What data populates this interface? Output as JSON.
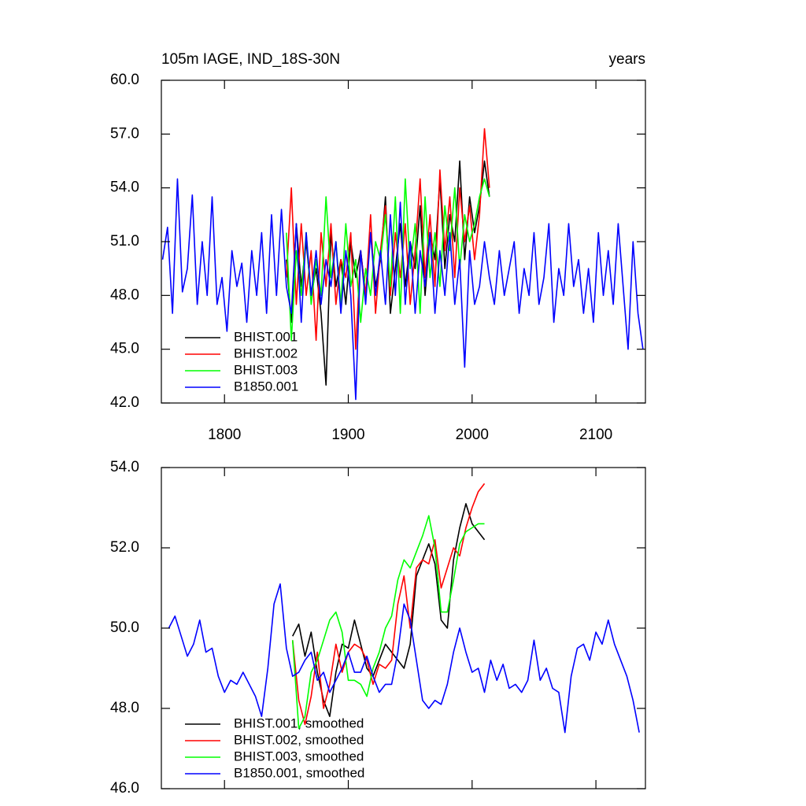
{
  "chart_data": [
    {
      "type": "line",
      "title": "105m IAGE, IND_18S-30N",
      "right_title": "years",
      "x": [
        1750,
        1754,
        1758,
        1762,
        1766,
        1770,
        1774,
        1778,
        1782,
        1786,
        1790,
        1794,
        1798,
        1802,
        1806,
        1810,
        1814,
        1818,
        1822,
        1826,
        1830,
        1834,
        1838,
        1842,
        1846,
        1850,
        1854,
        1858,
        1862,
        1866,
        1870,
        1874,
        1878,
        1882,
        1886,
        1890,
        1894,
        1898,
        1902,
        1906,
        1910,
        1914,
        1918,
        1922,
        1926,
        1930,
        1934,
        1938,
        1942,
        1946,
        1950,
        1954,
        1958,
        1962,
        1966,
        1970,
        1974,
        1978,
        1982,
        1986,
        1990,
        1994,
        1998,
        2002,
        2006,
        2010,
        2014,
        2018,
        2022,
        2026,
        2030,
        2034,
        2038,
        2042,
        2046,
        2050,
        2054,
        2058,
        2062,
        2066,
        2070,
        2074,
        2078,
        2082,
        2086,
        2090,
        2094,
        2098,
        2102,
        2106,
        2110,
        2114,
        2118,
        2122,
        2126,
        2130,
        2134,
        2138
      ],
      "xlim": [
        1749,
        2140
      ],
      "xticks": [
        1800,
        1900,
        2000,
        2100
      ],
      "ylim": [
        42,
        60
      ],
      "yticks": [
        {
          "value": 42,
          "label": "42.0"
        },
        {
          "value": 45,
          "label": "45.0"
        },
        {
          "value": 48,
          "label": "48.0"
        },
        {
          "value": 51,
          "label": "51.0"
        },
        {
          "value": 54,
          "label": "54.0"
        },
        {
          "value": 57,
          "label": "57.0"
        },
        {
          "value": 60,
          "label": "60.0"
        }
      ],
      "series": [
        {
          "name": "BHIST.001",
          "color": "#000000",
          "values": [
            null,
            null,
            null,
            null,
            null,
            null,
            null,
            null,
            null,
            null,
            null,
            null,
            null,
            null,
            null,
            null,
            null,
            null,
            null,
            null,
            null,
            null,
            null,
            null,
            null,
            50,
            46.5,
            52,
            48.5,
            51,
            48,
            49.5,
            47,
            43,
            51.5,
            48.5,
            50,
            47.5,
            51,
            49,
            50.5,
            48,
            51.5,
            48.5,
            50,
            53.5,
            47,
            49.5,
            52,
            48.5,
            51,
            49.5,
            53,
            48,
            51.5,
            50,
            54.5,
            49.5,
            52.5,
            51,
            55.5,
            50,
            53.5,
            51.5,
            53,
            55.5,
            53.5,
            null,
            null,
            null,
            null,
            null,
            null,
            null,
            null,
            null,
            null,
            null,
            null,
            null,
            null,
            null,
            null,
            null,
            null,
            null,
            null,
            null,
            null,
            null,
            null,
            null,
            null,
            null,
            null,
            null,
            null,
            null
          ]
        },
        {
          "name": "BHIST.002",
          "color": "#ff0000",
          "values": [
            null,
            null,
            null,
            null,
            null,
            null,
            null,
            null,
            null,
            null,
            null,
            null,
            null,
            null,
            null,
            null,
            null,
            null,
            null,
            null,
            null,
            null,
            null,
            null,
            null,
            49,
            54,
            47.5,
            52,
            48,
            50.5,
            45.5,
            51.5,
            48.5,
            52,
            47.5,
            50,
            49,
            51.5,
            45,
            50.5,
            48,
            52.5,
            47,
            50.5,
            53,
            48,
            51.5,
            49,
            52,
            47.5,
            50.5,
            54.5,
            49,
            52.5,
            48.5,
            55,
            50.5,
            53.5,
            49,
            54,
            51,
            53,
            50,
            52.5,
            57.3,
            54,
            null,
            null,
            null,
            null,
            null,
            null,
            null,
            null,
            null,
            null,
            null,
            null,
            null,
            null,
            null,
            null,
            null,
            null,
            null,
            null,
            null,
            null,
            null,
            null,
            null,
            null,
            null,
            null,
            null,
            null,
            null
          ]
        },
        {
          "name": "BHIST.003",
          "color": "#00ff00",
          "values": [
            null,
            null,
            null,
            null,
            null,
            null,
            null,
            null,
            null,
            null,
            null,
            null,
            null,
            null,
            null,
            null,
            null,
            null,
            null,
            null,
            null,
            null,
            null,
            null,
            null,
            51.5,
            45.5,
            50.5,
            48,
            51.5,
            47.5,
            50,
            48,
            53.5,
            49,
            51,
            47.5,
            52,
            48.5,
            50,
            46.5,
            49.5,
            48,
            51,
            50,
            52.5,
            48.5,
            53.5,
            47,
            54.5,
            49.5,
            52,
            47,
            53.5,
            49,
            51.5,
            48.5,
            53,
            50.5,
            54,
            49.5,
            52.5,
            51,
            52,
            53.5,
            54.5,
            53.5,
            null,
            null,
            null,
            null,
            null,
            null,
            null,
            null,
            null,
            null,
            null,
            null,
            null,
            null,
            null,
            null,
            null,
            null,
            null,
            null,
            null,
            null,
            null,
            null,
            null,
            null,
            null,
            null,
            null,
            null,
            null
          ]
        },
        {
          "name": "B1850.001",
          "color": "#0000ff",
          "values": [
            50.0,
            51.8,
            47.0,
            54.5,
            48.2,
            49.5,
            53.6,
            47.5,
            51.0,
            48.0,
            53.5,
            47.5,
            49.0,
            46.0,
            50.5,
            48.5,
            49.8,
            46.5,
            50.5,
            48.0,
            51.5,
            47.0,
            52.5,
            48.0,
            52.8,
            48.5,
            47.0,
            52.0,
            46.5,
            51.5,
            48.0,
            50.5,
            47.5,
            50.0,
            48.5,
            51.0,
            47.0,
            50.5,
            48.0,
            42.2,
            50.5,
            47.5,
            51.5,
            48.0,
            50.5,
            47.5,
            52.5,
            48.0,
            53.2,
            47.5,
            51.0,
            47.0,
            50.5,
            48.5,
            51.5,
            47.0,
            50.5,
            48.0,
            51.5,
            47.5,
            50.0,
            44.0,
            50.5,
            47.5,
            48.5,
            51.0,
            49.0,
            47.5,
            50.5,
            48.0,
            49.5,
            51.0,
            47.0,
            49.5,
            48.0,
            51.5,
            47.5,
            49.0,
            52.0,
            46.5,
            49.5,
            48.0,
            52.0,
            48.5,
            50.0,
            47.0,
            49.5,
            46.5,
            51.5,
            48.0,
            50.5,
            47.5,
            52.0,
            48.5,
            45.0,
            51.0,
            47.0,
            45.0
          ]
        }
      ]
    },
    {
      "type": "line",
      "x": [
        1755,
        1760,
        1765,
        1770,
        1775,
        1780,
        1785,
        1790,
        1795,
        1800,
        1805,
        1810,
        1815,
        1820,
        1825,
        1830,
        1835,
        1840,
        1845,
        1850,
        1855,
        1860,
        1865,
        1870,
        1875,
        1880,
        1885,
        1890,
        1895,
        1900,
        1905,
        1910,
        1915,
        1920,
        1925,
        1930,
        1935,
        1940,
        1945,
        1950,
        1955,
        1960,
        1965,
        1970,
        1975,
        1980,
        1985,
        1990,
        1995,
        2000,
        2005,
        2010,
        2015,
        2020,
        2025,
        2030,
        2035,
        2040,
        2045,
        2050,
        2055,
        2060,
        2065,
        2070,
        2075,
        2080,
        2085,
        2090,
        2095,
        2100,
        2105,
        2110,
        2115,
        2120,
        2125,
        2130,
        2135
      ],
      "xlim": [
        1749,
        2140
      ],
      "xticks": [
        1800,
        1900,
        2000,
        2100
      ],
      "ylim": [
        46,
        54
      ],
      "yticks": [
        {
          "value": 46,
          "label": "46.0"
        },
        {
          "value": 48,
          "label": "48.0"
        },
        {
          "value": 50,
          "label": "50.0"
        },
        {
          "value": 52,
          "label": "52.0"
        },
        {
          "value": 54,
          "label": "54.0"
        }
      ],
      "series": [
        {
          "name": "BHIST.001, smoothed",
          "color": "#000000",
          "values": [
            null,
            null,
            null,
            null,
            null,
            null,
            null,
            null,
            null,
            null,
            null,
            null,
            null,
            null,
            null,
            null,
            null,
            null,
            null,
            null,
            49.8,
            50.1,
            49.3,
            49.9,
            48.9,
            48.2,
            47.8,
            48.9,
            49.6,
            49.5,
            50.2,
            49.6,
            49.0,
            48.8,
            49.2,
            49.6,
            49.4,
            49.2,
            49.0,
            49.6,
            51.3,
            51.7,
            52.1,
            51.6,
            50.2,
            50.0,
            51.7,
            52.5,
            53.1,
            52.6,
            52.4,
            52.2,
            null,
            null,
            null,
            null,
            null,
            null,
            null,
            null,
            null,
            null,
            null,
            null,
            null,
            null,
            null,
            null,
            null,
            null,
            null,
            null,
            null,
            null,
            null,
            null,
            null
          ]
        },
        {
          "name": "BHIST.002, smoothed",
          "color": "#ff0000",
          "values": [
            null,
            null,
            null,
            null,
            null,
            null,
            null,
            null,
            null,
            null,
            null,
            null,
            null,
            null,
            null,
            null,
            null,
            null,
            null,
            null,
            49.7,
            48.2,
            47.6,
            48.3,
            49.4,
            48.0,
            48.6,
            49.6,
            48.9,
            49.4,
            49.6,
            49.5,
            49.2,
            48.6,
            49.1,
            49.0,
            49.2,
            50.6,
            51.3,
            50.0,
            51.5,
            51.7,
            51.6,
            52.2,
            51.0,
            51.5,
            52.0,
            51.8,
            52.5,
            53.0,
            53.4,
            53.6,
            null,
            null,
            null,
            null,
            null,
            null,
            null,
            null,
            null,
            null,
            null,
            null,
            null,
            null,
            null,
            null,
            null,
            null,
            null,
            null,
            null,
            null,
            null,
            null,
            null
          ]
        },
        {
          "name": "BHIST.003, smoothed",
          "color": "#00ff00",
          "values": [
            null,
            null,
            null,
            null,
            null,
            null,
            null,
            null,
            null,
            null,
            null,
            null,
            null,
            null,
            null,
            null,
            null,
            null,
            null,
            null,
            49.7,
            47.5,
            47.8,
            48.9,
            49.2,
            49.7,
            50.2,
            50.4,
            49.9,
            48.7,
            48.7,
            48.6,
            48.3,
            49.0,
            49.4,
            50.0,
            50.3,
            51.2,
            51.7,
            51.5,
            51.9,
            52.3,
            52.8,
            52.0,
            50.4,
            50.4,
            51.2,
            52.1,
            52.4,
            52.5,
            52.6,
            52.6,
            null,
            null,
            null,
            null,
            null,
            null,
            null,
            null,
            null,
            null,
            null,
            null,
            null,
            null,
            null,
            null,
            null,
            null,
            null,
            null,
            null,
            null,
            null,
            null,
            null
          ]
        },
        {
          "name": "B1850.001, smoothed",
          "color": "#0000ff",
          "values": [
            50.0,
            50.3,
            49.8,
            49.3,
            49.6,
            50.2,
            49.4,
            49.5,
            48.8,
            48.4,
            48.7,
            48.6,
            48.9,
            48.6,
            48.3,
            47.8,
            49.0,
            50.6,
            51.1,
            49.5,
            48.8,
            48.9,
            49.2,
            49.4,
            48.7,
            48.9,
            48.4,
            48.7,
            49.0,
            49.4,
            48.9,
            48.9,
            49.3,
            48.8,
            48.4,
            48.6,
            48.6,
            49.4,
            50.6,
            50.2,
            49.2,
            48.2,
            48.0,
            48.2,
            48.1,
            48.6,
            49.4,
            50.0,
            49.4,
            48.9,
            49.0,
            48.4,
            49.2,
            48.7,
            49.1,
            48.5,
            48.6,
            48.4,
            48.7,
            49.7,
            48.7,
            49.0,
            48.5,
            48.4,
            47.4,
            48.8,
            49.5,
            49.6,
            49.2,
            49.9,
            49.6,
            50.2,
            49.6,
            49.2,
            48.8,
            48.2,
            47.4
          ]
        }
      ]
    }
  ]
}
